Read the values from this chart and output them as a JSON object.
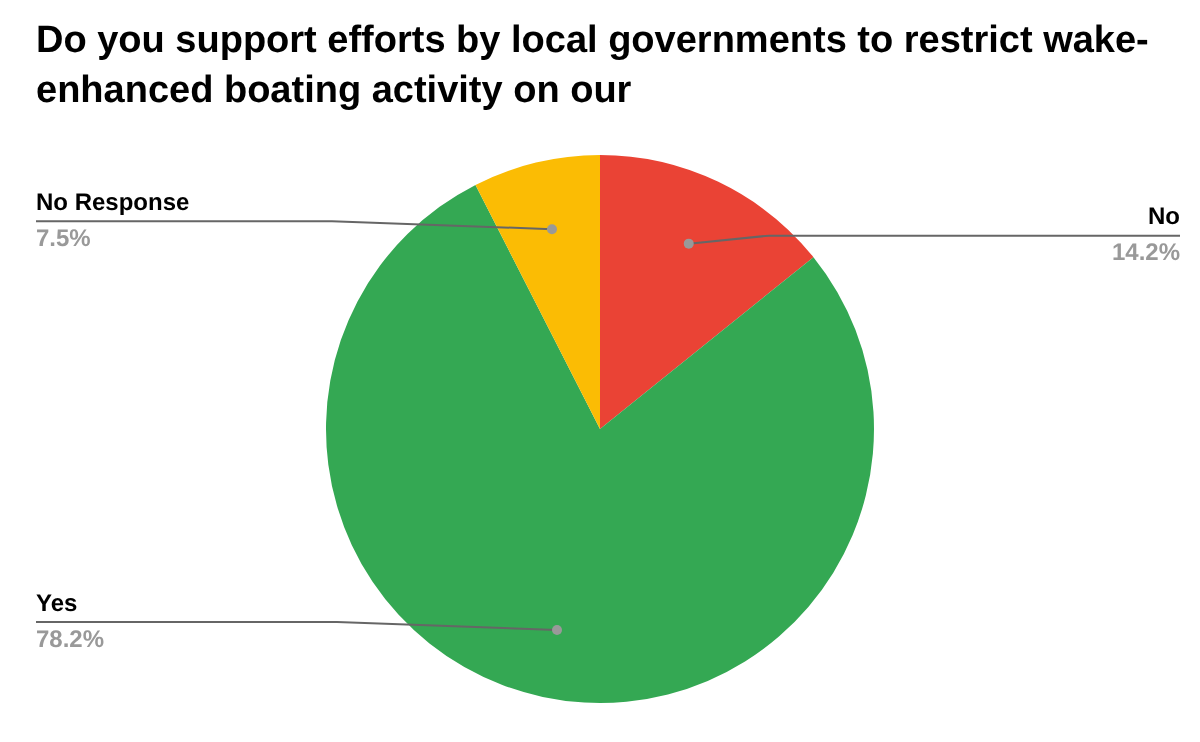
{
  "chart_data": {
    "type": "pie",
    "title": "Do you support efforts by local governments to restrict wake-enhanced boating activity on our",
    "categories": [
      "No",
      "Yes",
      "No Response"
    ],
    "values": [
      14.2,
      78.2,
      7.5
    ],
    "value_labels": [
      "14.2%",
      "78.2%",
      "7.5%"
    ],
    "colors": [
      "#ea4335",
      "#34a853",
      "#fbbc04"
    ],
    "legend": false
  }
}
